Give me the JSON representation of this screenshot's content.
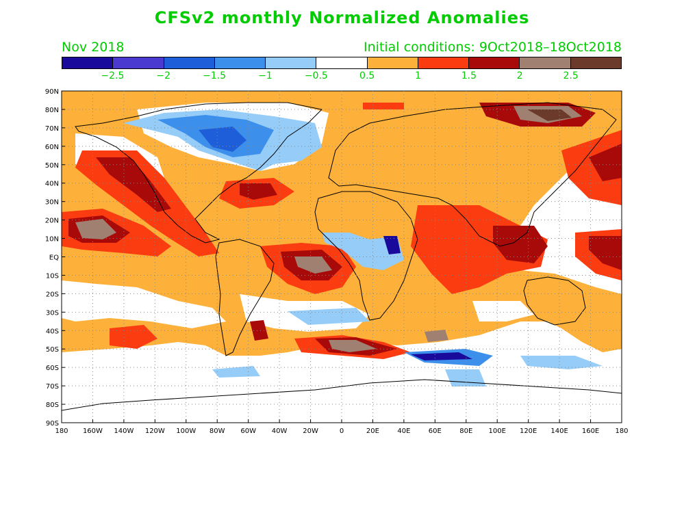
{
  "title": "CFSv2 monthly Normalized Anomalies",
  "subtitle_left": "Nov 2018",
  "subtitle_right": "Initial conditions: 9Oct2018–18Oct2018",
  "colorbar": {
    "colors": [
      "#1a0a9c",
      "#4a3ad0",
      "#1e5ed8",
      "#3c90ec",
      "#96ccf8",
      "#ffffff",
      "#fdb13a",
      "#fa3c10",
      "#a80a0a",
      "#a08070",
      "#6b3a2a"
    ],
    "labels": [
      "−2.5",
      "−2",
      "−1.5",
      "−1",
      "−0.5",
      "0.5",
      "1",
      "1.5",
      "2",
      "2.5"
    ]
  },
  "lat_labels": [
    "90N",
    "80N",
    "70N",
    "60N",
    "50N",
    "40N",
    "30N",
    "20N",
    "10N",
    "EQ",
    "10S",
    "20S",
    "30S",
    "40S",
    "50S",
    "60S",
    "70S",
    "80S",
    "90S"
  ],
  "lon_labels": [
    "180",
    "160W",
    "140W",
    "120W",
    "100W",
    "80W",
    "60W",
    "40W",
    "20W",
    "0",
    "20E",
    "40E",
    "60E",
    "80E",
    "100E",
    "120E",
    "140E",
    "160E",
    "180"
  ]
}
